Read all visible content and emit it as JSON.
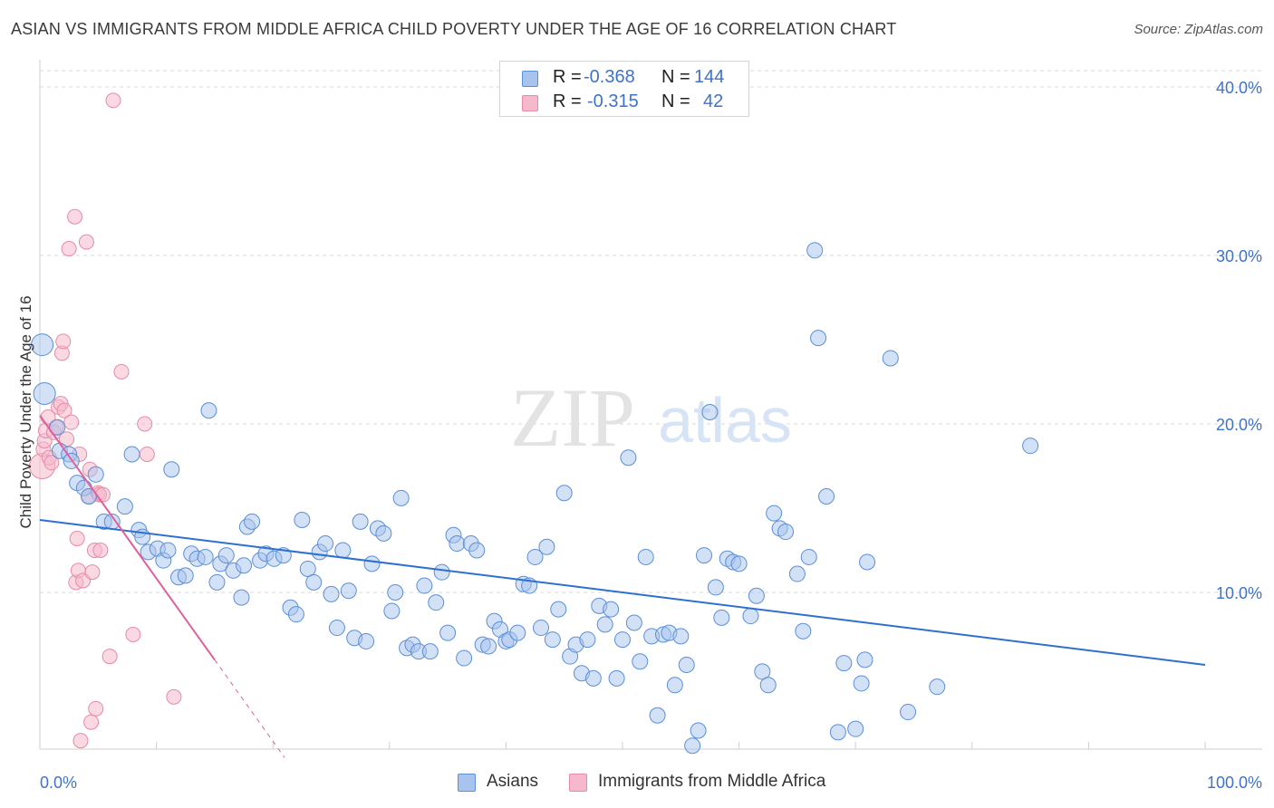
{
  "title": "ASIAN VS IMMIGRANTS FROM MIDDLE AFRICA CHILD POVERTY UNDER THE AGE OF 16 CORRELATION CHART",
  "source": "Source: ZipAtlas.com",
  "watermark": {
    "zip": "ZIP",
    "atlas": "atlas"
  },
  "colors": {
    "asian_fill": "#a8c4ee",
    "asian_stroke": "#5b8fd6",
    "asian_line": "#2f6fd0",
    "africa_fill": "#f6b9cc",
    "africa_stroke": "#e58aa8",
    "africa_line": "#e0609a",
    "grid": "#d9d9d9",
    "tick_text": "#3f72c9"
  },
  "legend": {
    "asian": {
      "r_label": "R =",
      "r_value": "-0.368",
      "n_label": "N =",
      "n_value": "144"
    },
    "africa": {
      "r_label": "R =",
      "r_value": "-0.315",
      "n_label": "N =",
      "n_value": "42"
    }
  },
  "chart_data": {
    "type": "scatter",
    "title": "ASIAN VS IMMIGRANTS FROM MIDDLE AFRICA CHILD POVERTY UNDER THE AGE OF 16 CORRELATION CHART",
    "xlabel": "",
    "ylabel": "Child Poverty Under the Age of 16",
    "xlim": [
      0,
      100
    ],
    "ylim": [
      0,
      42
    ],
    "x_tick_labels": [
      "0.0%",
      "100.0%"
    ],
    "y_ticks": [
      10,
      20,
      30,
      40
    ],
    "y_tick_labels": [
      "10.0%",
      "20.0%",
      "30.0%",
      "40.0%"
    ],
    "grid": true,
    "legend_position": "top-center",
    "series": [
      {
        "name": "Asians",
        "trend": {
          "x": [
            0,
            100
          ],
          "y": [
            14.3,
            5.7
          ]
        },
        "points": [
          [
            0.2,
            24.7
          ],
          [
            0.4,
            21.8
          ],
          [
            1.5,
            19.8
          ],
          [
            1.7,
            18.4
          ],
          [
            2.5,
            18.2
          ],
          [
            2.7,
            17.8
          ],
          [
            3.2,
            16.5
          ],
          [
            3.8,
            16.2
          ],
          [
            4.2,
            15.7
          ],
          [
            4.8,
            17.0
          ],
          [
            5.5,
            14.2
          ],
          [
            6.2,
            14.2
          ],
          [
            7.3,
            15.1
          ],
          [
            7.9,
            18.2
          ],
          [
            8.5,
            13.7
          ],
          [
            8.8,
            13.3
          ],
          [
            9.3,
            12.4
          ],
          [
            10.1,
            12.6
          ],
          [
            10.6,
            11.9
          ],
          [
            11.0,
            12.5
          ],
          [
            11.3,
            17.3
          ],
          [
            11.9,
            10.9
          ],
          [
            12.5,
            11.0
          ],
          [
            13.0,
            12.3
          ],
          [
            13.5,
            12.0
          ],
          [
            14.2,
            12.1
          ],
          [
            14.5,
            20.8
          ],
          [
            15.2,
            10.6
          ],
          [
            15.5,
            11.7
          ],
          [
            16.0,
            12.2
          ],
          [
            16.6,
            11.3
          ],
          [
            17.3,
            9.7
          ],
          [
            17.5,
            11.6
          ],
          [
            17.8,
            13.9
          ],
          [
            18.2,
            14.2
          ],
          [
            18.9,
            11.9
          ],
          [
            19.4,
            12.3
          ],
          [
            20.1,
            12.0
          ],
          [
            20.9,
            12.2
          ],
          [
            21.5,
            9.1
          ],
          [
            22.0,
            8.7
          ],
          [
            22.5,
            14.3
          ],
          [
            23.0,
            11.4
          ],
          [
            23.5,
            10.6
          ],
          [
            24.0,
            12.4
          ],
          [
            24.5,
            12.9
          ],
          [
            25.0,
            9.9
          ],
          [
            25.5,
            7.9
          ],
          [
            26.0,
            12.5
          ],
          [
            26.5,
            10.1
          ],
          [
            27.0,
            7.3
          ],
          [
            27.5,
            14.2
          ],
          [
            28.0,
            7.1
          ],
          [
            28.5,
            11.7
          ],
          [
            29.0,
            13.8
          ],
          [
            29.5,
            13.5
          ],
          [
            30.2,
            8.9
          ],
          [
            30.5,
            10.0
          ],
          [
            31.0,
            15.6
          ],
          [
            31.5,
            6.7
          ],
          [
            32.0,
            6.9
          ],
          [
            32.5,
            6.5
          ],
          [
            33.0,
            10.4
          ],
          [
            33.5,
            6.5
          ],
          [
            34.0,
            9.4
          ],
          [
            34.5,
            11.2
          ],
          [
            35.0,
            7.6
          ],
          [
            35.5,
            13.4
          ],
          [
            35.8,
            12.9
          ],
          [
            36.4,
            6.1
          ],
          [
            37.0,
            12.9
          ],
          [
            37.5,
            12.5
          ],
          [
            38.0,
            6.9
          ],
          [
            38.5,
            6.8
          ],
          [
            39.0,
            8.3
          ],
          [
            39.5,
            7.8
          ],
          [
            40.0,
            7.1
          ],
          [
            40.3,
            7.2
          ],
          [
            41.0,
            7.6
          ],
          [
            41.5,
            10.5
          ],
          [
            42.0,
            10.4
          ],
          [
            42.5,
            12.1
          ],
          [
            43.0,
            7.9
          ],
          [
            43.5,
            12.7
          ],
          [
            44.0,
            7.2
          ],
          [
            44.5,
            9.0
          ],
          [
            45.0,
            15.9
          ],
          [
            45.5,
            6.2
          ],
          [
            46.0,
            6.9
          ],
          [
            46.5,
            5.2
          ],
          [
            47.0,
            7.2
          ],
          [
            47.5,
            4.9
          ],
          [
            48.0,
            9.2
          ],
          [
            48.5,
            8.1
          ],
          [
            49.0,
            9.0
          ],
          [
            49.5,
            4.9
          ],
          [
            50.0,
            7.2
          ],
          [
            50.5,
            18.0
          ],
          [
            51.0,
            8.2
          ],
          [
            51.5,
            5.9
          ],
          [
            52.0,
            12.1
          ],
          [
            52.5,
            7.4
          ],
          [
            53.0,
            2.7
          ],
          [
            53.5,
            7.5
          ],
          [
            54.0,
            7.6
          ],
          [
            54.5,
            4.5
          ],
          [
            55.0,
            7.4
          ],
          [
            55.5,
            5.7
          ],
          [
            56.0,
            0.9
          ],
          [
            56.5,
            1.8
          ],
          [
            57.0,
            12.2
          ],
          [
            57.5,
            20.7
          ],
          [
            58.0,
            10.3
          ],
          [
            58.5,
            8.5
          ],
          [
            59.0,
            12.0
          ],
          [
            59.5,
            11.8
          ],
          [
            60.0,
            11.7
          ],
          [
            61.0,
            8.6
          ],
          [
            61.5,
            9.8
          ],
          [
            62.0,
            5.3
          ],
          [
            62.5,
            4.5
          ],
          [
            63.0,
            14.7
          ],
          [
            63.5,
            13.8
          ],
          [
            64.0,
            13.6
          ],
          [
            65.0,
            11.1
          ],
          [
            65.5,
            7.7
          ],
          [
            66.0,
            12.1
          ],
          [
            66.5,
            30.3
          ],
          [
            66.8,
            25.1
          ],
          [
            67.5,
            15.7
          ],
          [
            68.5,
            1.7
          ],
          [
            69.0,
            5.8
          ],
          [
            70.0,
            1.9
          ],
          [
            70.5,
            4.6
          ],
          [
            70.8,
            6.0
          ],
          [
            71.0,
            11.8
          ],
          [
            73.0,
            23.9
          ],
          [
            74.5,
            2.9
          ],
          [
            77.0,
            4.4
          ],
          [
            85.0,
            18.7
          ]
        ]
      },
      {
        "name": "Immigrants from Middle Africa",
        "trend": {
          "x": [
            0,
            15
          ],
          "y": [
            20.5,
            6.0
          ]
        },
        "trend_dashed": {
          "x": [
            15,
            21
          ],
          "y": [
            6.0,
            0.2
          ]
        },
        "points": [
          [
            0.2,
            17.5
          ],
          [
            0.3,
            18.5
          ],
          [
            0.4,
            19.0
          ],
          [
            0.5,
            19.6
          ],
          [
            0.7,
            20.4
          ],
          [
            0.8,
            18.0
          ],
          [
            1.0,
            17.7
          ],
          [
            1.2,
            19.5
          ],
          [
            1.4,
            19.8
          ],
          [
            1.6,
            21.0
          ],
          [
            1.8,
            21.2
          ],
          [
            1.9,
            24.2
          ],
          [
            2.0,
            24.9
          ],
          [
            2.1,
            20.8
          ],
          [
            2.3,
            19.1
          ],
          [
            2.5,
            30.4
          ],
          [
            2.7,
            20.1
          ],
          [
            3.0,
            32.3
          ],
          [
            3.1,
            10.6
          ],
          [
            3.2,
            13.2
          ],
          [
            3.3,
            11.3
          ],
          [
            3.4,
            18.2
          ],
          [
            3.5,
            1.2
          ],
          [
            3.7,
            10.7
          ],
          [
            4.0,
            30.8
          ],
          [
            4.2,
            15.7
          ],
          [
            4.3,
            17.3
          ],
          [
            4.4,
            2.3
          ],
          [
            4.5,
            11.2
          ],
          [
            4.7,
            12.5
          ],
          [
            4.8,
            3.1
          ],
          [
            5.0,
            15.9
          ],
          [
            5.1,
            15.8
          ],
          [
            5.2,
            12.5
          ],
          [
            5.4,
            15.8
          ],
          [
            6.0,
            6.2
          ],
          [
            6.3,
            39.2
          ],
          [
            7.0,
            23.1
          ],
          [
            8.0,
            7.5
          ],
          [
            9.0,
            20.0
          ],
          [
            9.2,
            18.2
          ],
          [
            11.5,
            3.8
          ]
        ]
      }
    ]
  },
  "bottom_legend": {
    "asian": "Asians",
    "africa": "Immigrants from Middle Africa"
  }
}
